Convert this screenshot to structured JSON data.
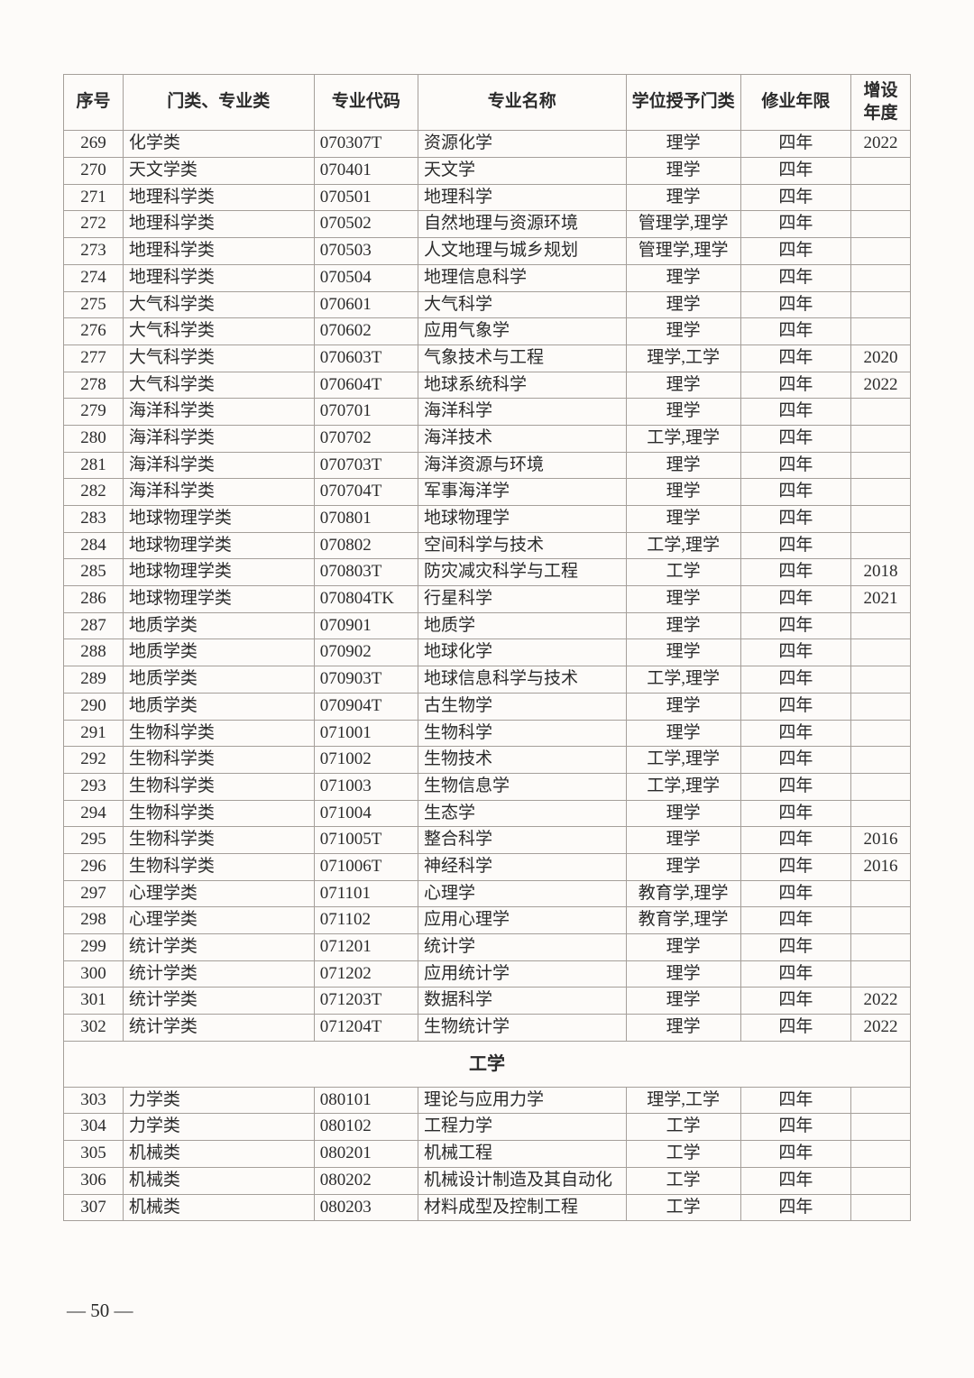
{
  "table": {
    "headers": [
      "序号",
      "门类、专业类",
      "专业代码",
      "专业名称",
      "学位授予门类",
      "修业年限",
      "增设年度"
    ],
    "col_align": [
      "c",
      "l",
      "l",
      "l",
      "c",
      "c",
      "c"
    ],
    "rows": [
      {
        "cells": [
          "269",
          "化学类",
          "070307T",
          "资源化学",
          "理学",
          "四年",
          "2022"
        ]
      },
      {
        "cells": [
          "270",
          "天文学类",
          "070401",
          "天文学",
          "理学",
          "四年",
          ""
        ]
      },
      {
        "cells": [
          "271",
          "地理科学类",
          "070501",
          "地理科学",
          "理学",
          "四年",
          ""
        ]
      },
      {
        "cells": [
          "272",
          "地理科学类",
          "070502",
          "自然地理与资源环境",
          "管理学,理学",
          "四年",
          ""
        ]
      },
      {
        "cells": [
          "273",
          "地理科学类",
          "070503",
          "人文地理与城乡规划",
          "管理学,理学",
          "四年",
          ""
        ]
      },
      {
        "cells": [
          "274",
          "地理科学类",
          "070504",
          "地理信息科学",
          "理学",
          "四年",
          ""
        ]
      },
      {
        "cells": [
          "275",
          "大气科学类",
          "070601",
          "大气科学",
          "理学",
          "四年",
          ""
        ]
      },
      {
        "cells": [
          "276",
          "大气科学类",
          "070602",
          "应用气象学",
          "理学",
          "四年",
          ""
        ]
      },
      {
        "cells": [
          "277",
          "大气科学类",
          "070603T",
          "气象技术与工程",
          "理学,工学",
          "四年",
          "2020"
        ]
      },
      {
        "cells": [
          "278",
          "大气科学类",
          "070604T",
          "地球系统科学",
          "理学",
          "四年",
          "2022"
        ]
      },
      {
        "cells": [
          "279",
          "海洋科学类",
          "070701",
          "海洋科学",
          "理学",
          "四年",
          ""
        ]
      },
      {
        "cells": [
          "280",
          "海洋科学类",
          "070702",
          "海洋技术",
          "工学,理学",
          "四年",
          ""
        ]
      },
      {
        "cells": [
          "281",
          "海洋科学类",
          "070703T",
          "海洋资源与环境",
          "理学",
          "四年",
          ""
        ]
      },
      {
        "cells": [
          "282",
          "海洋科学类",
          "070704T",
          "军事海洋学",
          "理学",
          "四年",
          ""
        ]
      },
      {
        "cells": [
          "283",
          "地球物理学类",
          "070801",
          "地球物理学",
          "理学",
          "四年",
          ""
        ]
      },
      {
        "cells": [
          "284",
          "地球物理学类",
          "070802",
          "空间科学与技术",
          "工学,理学",
          "四年",
          ""
        ]
      },
      {
        "cells": [
          "285",
          "地球物理学类",
          "070803T",
          "防灾减灾科学与工程",
          "工学",
          "四年",
          "2018"
        ]
      },
      {
        "cells": [
          "286",
          "地球物理学类",
          "070804TK",
          "行星科学",
          "理学",
          "四年",
          "2021"
        ]
      },
      {
        "cells": [
          "287",
          "地质学类",
          "070901",
          "地质学",
          "理学",
          "四年",
          ""
        ]
      },
      {
        "cells": [
          "288",
          "地质学类",
          "070902",
          "地球化学",
          "理学",
          "四年",
          ""
        ]
      },
      {
        "cells": [
          "289",
          "地质学类",
          "070903T",
          "地球信息科学与技术",
          "工学,理学",
          "四年",
          ""
        ]
      },
      {
        "cells": [
          "290",
          "地质学类",
          "070904T",
          "古生物学",
          "理学",
          "四年",
          ""
        ]
      },
      {
        "cells": [
          "291",
          "生物科学类",
          "071001",
          "生物科学",
          "理学",
          "四年",
          ""
        ]
      },
      {
        "cells": [
          "292",
          "生物科学类",
          "071002",
          "生物技术",
          "工学,理学",
          "四年",
          ""
        ]
      },
      {
        "cells": [
          "293",
          "生物科学类",
          "071003",
          "生物信息学",
          "工学,理学",
          "四年",
          ""
        ]
      },
      {
        "cells": [
          "294",
          "生物科学类",
          "071004",
          "生态学",
          "理学",
          "四年",
          ""
        ]
      },
      {
        "cells": [
          "295",
          "生物科学类",
          "071005T",
          "整合科学",
          "理学",
          "四年",
          "2016"
        ]
      },
      {
        "cells": [
          "296",
          "生物科学类",
          "071006T",
          "神经科学",
          "理学",
          "四年",
          "2016"
        ]
      },
      {
        "cells": [
          "297",
          "心理学类",
          "071101",
          "心理学",
          "教育学,理学",
          "四年",
          ""
        ]
      },
      {
        "cells": [
          "298",
          "心理学类",
          "071102",
          "应用心理学",
          "教育学,理学",
          "四年",
          ""
        ]
      },
      {
        "cells": [
          "299",
          "统计学类",
          "071201",
          "统计学",
          "理学",
          "四年",
          ""
        ]
      },
      {
        "cells": [
          "300",
          "统计学类",
          "071202",
          "应用统计学",
          "理学",
          "四年",
          ""
        ]
      },
      {
        "cells": [
          "301",
          "统计学类",
          "071203T",
          "数据科学",
          "理学",
          "四年",
          "2022"
        ]
      },
      {
        "cells": [
          "302",
          "统计学类",
          "071204T",
          "生物统计学",
          "理学",
          "四年",
          "2022"
        ]
      },
      {
        "section": "工学"
      },
      {
        "cells": [
          "303",
          "力学类",
          "080101",
          "理论与应用力学",
          "理学,工学",
          "四年",
          ""
        ]
      },
      {
        "cells": [
          "304",
          "力学类",
          "080102",
          "工程力学",
          "工学",
          "四年",
          ""
        ]
      },
      {
        "cells": [
          "305",
          "机械类",
          "080201",
          "机械工程",
          "工学",
          "四年",
          ""
        ]
      },
      {
        "cells": [
          "306",
          "机械类",
          "080202",
          "机械设计制造及其自动化",
          "工学",
          "四年",
          ""
        ]
      },
      {
        "cells": [
          "307",
          "机械类",
          "080203",
          "材料成型及控制工程",
          "工学",
          "四年",
          ""
        ]
      }
    ]
  },
  "page_number": "— 50 —"
}
